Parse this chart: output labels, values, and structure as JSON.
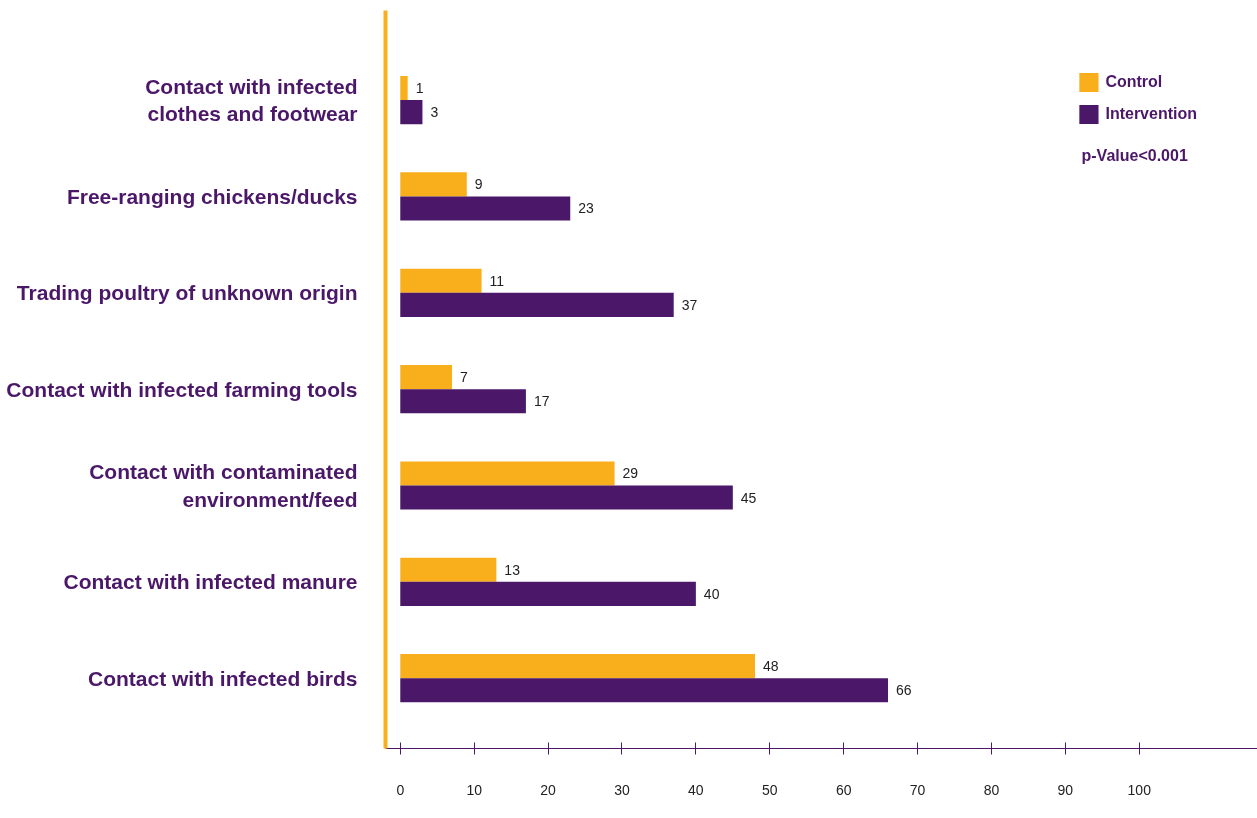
{
  "chart_data": {
    "type": "bar",
    "orientation": "horizontal",
    "categories": [
      "Contact with infected\nclothes and footwear",
      "Free-ranging chickens/ducks",
      "Trading poultry of unknown origin",
      "Contact with infected farming tools",
      "Contact with contaminated\nenvironment/feed",
      "Contact with infected manure",
      "Contact with infected birds"
    ],
    "series": [
      {
        "name": "Control",
        "color": "#f9ae1b",
        "values": [
          1,
          9,
          11,
          7,
          29,
          13,
          48
        ]
      },
      {
        "name": "Intervention",
        "color": "#4b1769",
        "values": [
          3,
          23,
          37,
          17,
          45,
          40,
          66
        ]
      }
    ],
    "xlim": [
      -2,
      116
    ],
    "xticks": [
      0,
      10,
      20,
      30,
      40,
      50,
      60,
      70,
      80,
      90,
      100
    ],
    "data_labels": true,
    "grid": false,
    "legend": "top right",
    "annotations": [
      "p-Value<0.001"
    ]
  }
}
